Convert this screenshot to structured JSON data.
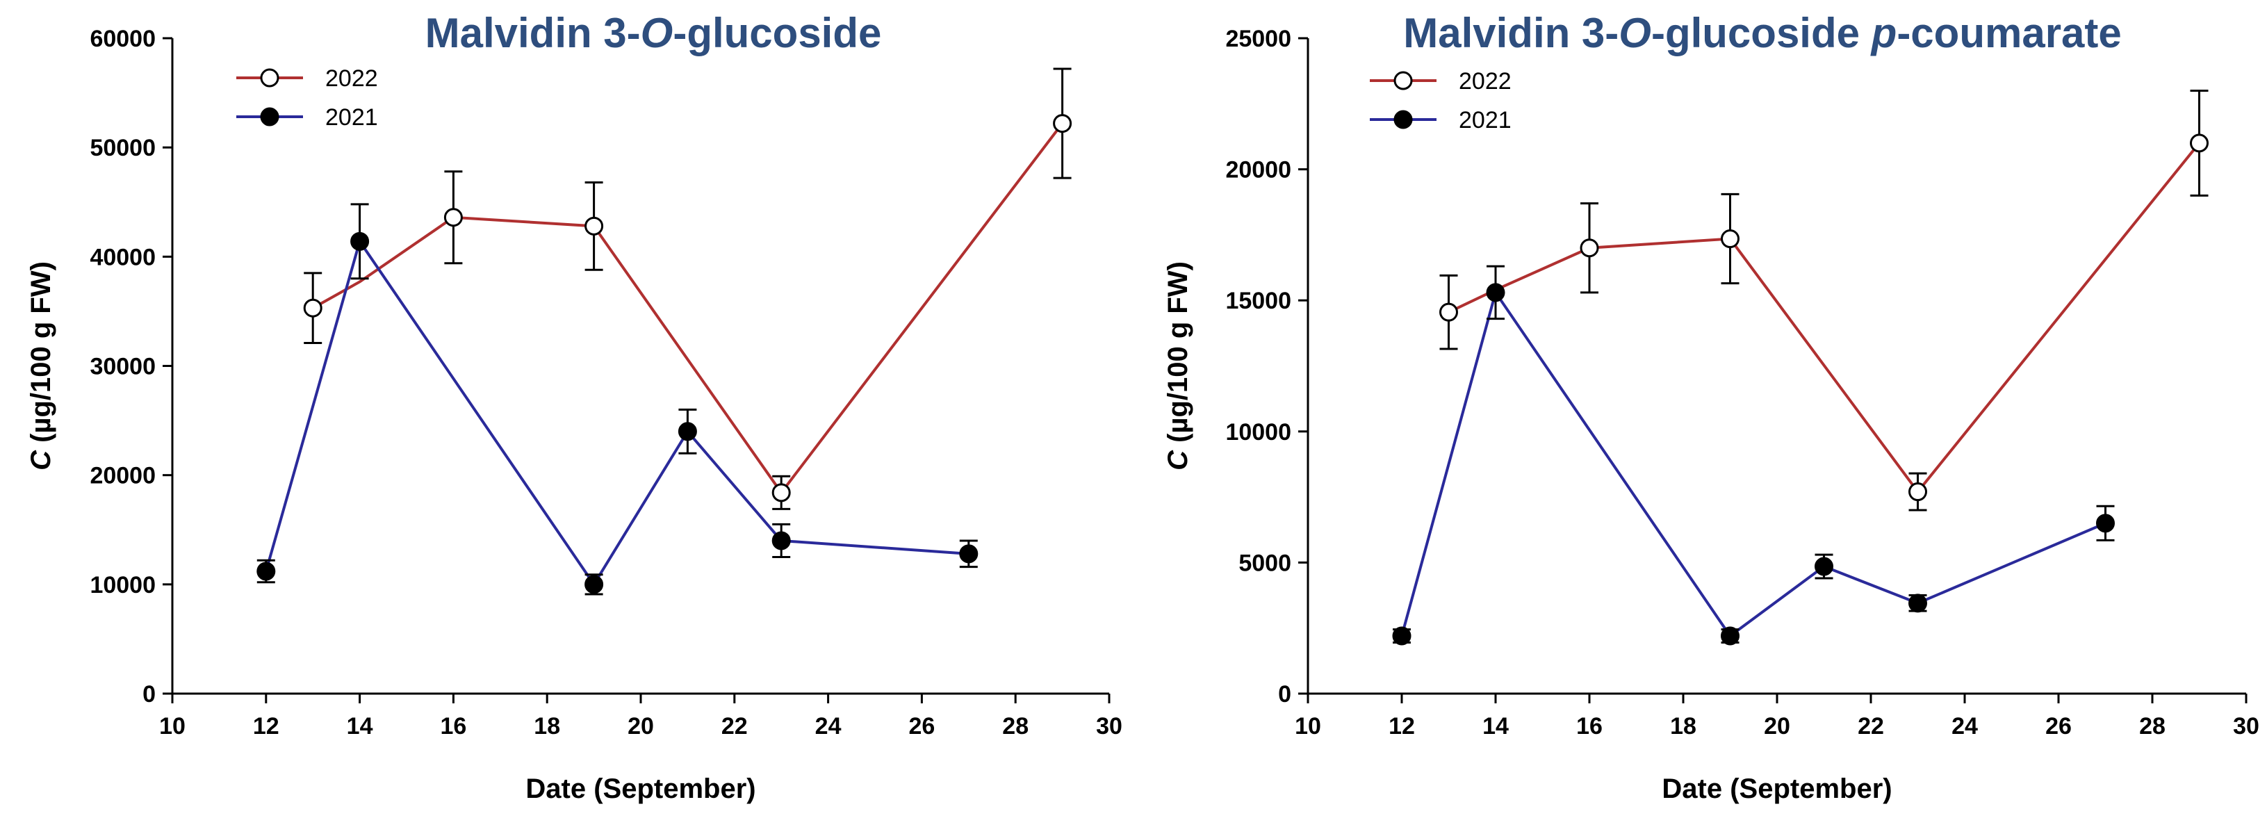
{
  "chart_data": [
    {
      "type": "line",
      "title": "Malvidin 3-O-glucoside",
      "title_parts": [
        "Malvidin 3-",
        "O",
        "-glucoside"
      ],
      "xlabel": "Date (September)",
      "ylabel_italic": "C",
      "ylabel_rest": " (µg/100 g FW)",
      "xlim": [
        10,
        30
      ],
      "ylim": [
        0,
        60000
      ],
      "xticks": [
        "10",
        "12",
        "14",
        "16",
        "18",
        "20",
        "22",
        "24",
        "26",
        "28",
        "30"
      ],
      "yticks": [
        "0",
        "10000",
        "20000",
        "30000",
        "40000",
        "50000",
        "60000"
      ],
      "legend_position": "top-left",
      "series": [
        {
          "name": "2022",
          "color": "#b03030",
          "marker": "open-circle",
          "x": [
            13,
            14,
            16,
            19,
            23,
            29
          ],
          "y": [
            35300,
            37700,
            43600,
            42800,
            18400,
            52200
          ],
          "err": [
            3200,
            0,
            4200,
            4000,
            1500,
            5000
          ],
          "markers_at": [
            0,
            2,
            3,
            4,
            5
          ]
        },
        {
          "name": "2021",
          "color": "#2a2a9a",
          "marker": "filled-circle",
          "x": [
            12,
            14,
            19,
            21,
            23,
            27
          ],
          "y": [
            11200,
            41400,
            10000,
            24000,
            14000,
            12800
          ],
          "err": [
            1000,
            3400,
            900,
            2000,
            1500,
            1200
          ],
          "markers_at": [
            0,
            1,
            2,
            3,
            4,
            5
          ]
        }
      ]
    },
    {
      "type": "line",
      "title": "Malvidin 3-O-glucoside p-coumarate",
      "title_parts": [
        "Malvidin 3-",
        "O",
        "-glucoside ",
        "p",
        "-coumarate"
      ],
      "xlabel": "Date (September)",
      "ylabel_italic": "C",
      "ylabel_rest": " (µg/100 g FW)",
      "xlim": [
        10,
        30
      ],
      "ylim": [
        0,
        25000
      ],
      "xticks": [
        "10",
        "12",
        "14",
        "16",
        "18",
        "20",
        "22",
        "24",
        "26",
        "28",
        "30"
      ],
      "yticks": [
        "0",
        "5000",
        "10000",
        "15000",
        "20000",
        "25000"
      ],
      "legend_position": "top-left",
      "series": [
        {
          "name": "2022",
          "color": "#b03030",
          "marker": "open-circle",
          "x": [
            13,
            14,
            16,
            19,
            23,
            29
          ],
          "y": [
            14550,
            15400,
            17000,
            17350,
            7700,
            21000
          ],
          "err": [
            1400,
            0,
            1700,
            1700,
            700,
            2000
          ],
          "markers_at": [
            0,
            2,
            3,
            4,
            5
          ]
        },
        {
          "name": "2021",
          "color": "#2a2a9a",
          "marker": "filled-circle",
          "x": [
            12,
            14,
            19,
            21,
            23,
            27
          ],
          "y": [
            2200,
            15300,
            2200,
            4850,
            3450,
            6500
          ],
          "err": [
            250,
            1000,
            250,
            450,
            300,
            650
          ],
          "markers_at": [
            0,
            1,
            2,
            3,
            4,
            5
          ]
        }
      ]
    }
  ]
}
